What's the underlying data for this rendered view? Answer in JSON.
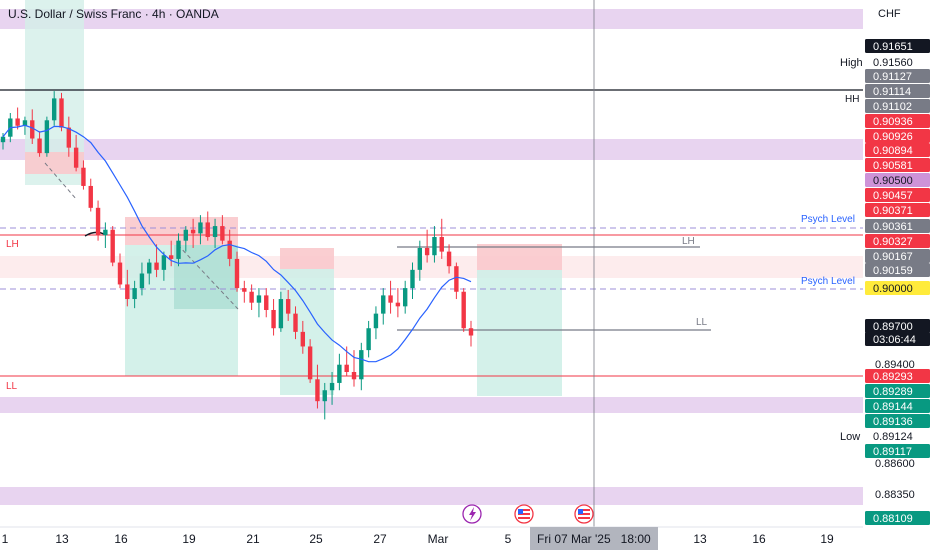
{
  "header": {
    "title": "U.S. Dollar / Swiss Franc · 4h · OANDA",
    "currency": "CHF"
  },
  "colors": {
    "up": "#089981",
    "down": "#f23645",
    "ma": "#2962ff",
    "zone": "#e1bee7",
    "psych": "#9c8fd9",
    "line_red": "#f23645"
  },
  "price_axis": {
    "plain_ticks": [
      "0.89400",
      "0.88600",
      "0.88350"
    ]
  },
  "price_badges": [
    {
      "text": "0.91651",
      "kind": "black"
    },
    {
      "text": "0.91560",
      "kind": "plain",
      "side_label": "High"
    },
    {
      "text": "0.91127",
      "kind": "gray"
    },
    {
      "text": "0.91114",
      "kind": "gray"
    },
    {
      "text": "0.91102",
      "kind": "gray"
    },
    {
      "text": "0.90936",
      "kind": "red"
    },
    {
      "text": "0.90926",
      "kind": "red"
    },
    {
      "text": "0.90894",
      "kind": "red"
    },
    {
      "text": "0.90581",
      "kind": "red"
    },
    {
      "text": "0.90500",
      "kind": "purple"
    },
    {
      "text": "0.90457",
      "kind": "red"
    },
    {
      "text": "0.90371",
      "kind": "red"
    },
    {
      "text": "0.90361",
      "kind": "gray"
    },
    {
      "text": "0.90327",
      "kind": "red"
    },
    {
      "text": "0.90167",
      "kind": "gray"
    },
    {
      "text": "0.90159",
      "kind": "gray"
    },
    {
      "text": "0.90000",
      "kind": "yellow"
    },
    {
      "text": "0.89700",
      "kind": "black"
    },
    {
      "text": "03:06:44",
      "kind": "black"
    },
    {
      "text": "0.89293",
      "kind": "red"
    },
    {
      "text": "0.89289",
      "kind": "green"
    },
    {
      "text": "0.89144",
      "kind": "green"
    },
    {
      "text": "0.89136",
      "kind": "green"
    },
    {
      "text": "0.89124",
      "kind": "plain",
      "side_label": "Low"
    },
    {
      "text": "0.89117",
      "kind": "green"
    },
    {
      "text": "0.88109",
      "kind": "green"
    }
  ],
  "drawing_labels": {
    "hh": "HH",
    "lh_left": "LH",
    "lh_right": "LH",
    "ll_left": "LL",
    "ll_right": "LL",
    "psych_upper": "Psych Level",
    "psych_lower": "Psych Level"
  },
  "time_axis": {
    "labels": [
      "1",
      "13",
      "16",
      "19",
      "21",
      "25",
      "27",
      "Mar",
      "5",
      "13",
      "16",
      "19"
    ],
    "crosshair_label": "Fri 07 Mar '25   18:00"
  },
  "event_icons": [
    "lightning-icon",
    "us-flag-icon",
    "us-flag-icon"
  ],
  "candles": [
    [
      0.9076,
      0.9081,
      0.9072,
      0.9079
    ],
    [
      0.9079,
      0.9092,
      0.9076,
      0.9089
    ],
    [
      0.9089,
      0.9095,
      0.9083,
      0.9085
    ],
    [
      0.9085,
      0.909,
      0.908,
      0.9088
    ],
    [
      0.9088,
      0.9094,
      0.9075,
      0.9078
    ],
    [
      0.9078,
      0.9082,
      0.9068,
      0.907
    ],
    [
      0.907,
      0.909,
      0.9068,
      0.9088
    ],
    [
      0.9088,
      0.9104,
      0.9085,
      0.91
    ],
    [
      0.91,
      0.9103,
      0.9082,
      0.9084
    ],
    [
      0.9084,
      0.909,
      0.9068,
      0.9073
    ],
    [
      0.9073,
      0.908,
      0.906,
      0.9062
    ],
    [
      0.9062,
      0.9066,
      0.905,
      0.9052
    ],
    [
      0.9052,
      0.9056,
      0.9038,
      0.904
    ],
    [
      0.904,
      0.9044,
      0.9022,
      0.9025
    ],
    [
      0.9025,
      0.9032,
      0.9018,
      0.9028
    ],
    [
      0.9028,
      0.903,
      0.9008,
      0.901
    ],
    [
      0.901,
      0.9015,
      0.8996,
      0.8998
    ],
    [
      0.8998,
      0.9006,
      0.8986,
      0.899
    ],
    [
      0.899,
      0.9,
      0.8985,
      0.8996
    ],
    [
      0.8996,
      0.901,
      0.8992,
      0.9004
    ],
    [
      0.9004,
      0.9012,
      0.8998,
      0.901
    ],
    [
      0.901,
      0.902,
      0.9002,
      0.9006
    ],
    [
      0.9006,
      0.9016,
      0.9,
      0.9014
    ],
    [
      0.9014,
      0.9022,
      0.9008,
      0.9012
    ],
    [
      0.9012,
      0.9026,
      0.9008,
      0.9022
    ],
    [
      0.9022,
      0.903,
      0.9016,
      0.9028
    ],
    [
      0.9028,
      0.9034,
      0.9018,
      0.9026
    ],
    [
      0.9026,
      0.9036,
      0.902,
      0.9032
    ],
    [
      0.9032,
      0.9038,
      0.9022,
      0.9024
    ],
    [
      0.9024,
      0.9034,
      0.9018,
      0.903
    ],
    [
      0.903,
      0.9036,
      0.902,
      0.9022
    ],
    [
      0.9022,
      0.9028,
      0.9008,
      0.9012
    ],
    [
      0.9012,
      0.9016,
      0.8994,
      0.8996
    ],
    [
      0.8996,
      0.9,
      0.8988,
      0.8994
    ],
    [
      0.8994,
      0.8998,
      0.8984,
      0.8988
    ],
    [
      0.8988,
      0.8996,
      0.898,
      0.8992
    ],
    [
      0.8992,
      0.8996,
      0.898,
      0.8984
    ],
    [
      0.8984,
      0.899,
      0.897,
      0.8974
    ],
    [
      0.8974,
      0.8994,
      0.8972,
      0.899
    ],
    [
      0.899,
      0.8995,
      0.8978,
      0.8982
    ],
    [
      0.8982,
      0.8986,
      0.8968,
      0.8972
    ],
    [
      0.8972,
      0.8978,
      0.896,
      0.8964
    ],
    [
      0.8964,
      0.8968,
      0.8944,
      0.8946
    ],
    [
      0.8946,
      0.8954,
      0.893,
      0.8934
    ],
    [
      0.8934,
      0.8944,
      0.8924,
      0.894
    ],
    [
      0.894,
      0.895,
      0.8932,
      0.8944
    ],
    [
      0.8944,
      0.896,
      0.894,
      0.8954
    ],
    [
      0.8954,
      0.8964,
      0.8948,
      0.895
    ],
    [
      0.895,
      0.8962,
      0.8942,
      0.8946
    ],
    [
      0.8946,
      0.8966,
      0.894,
      0.8962
    ],
    [
      0.8962,
      0.8978,
      0.8958,
      0.8974
    ],
    [
      0.8974,
      0.8986,
      0.8968,
      0.8982
    ],
    [
      0.8982,
      0.8996,
      0.8976,
      0.8992
    ],
    [
      0.8992,
      0.9,
      0.8982,
      0.8988
    ],
    [
      0.8988,
      0.8996,
      0.898,
      0.8986
    ],
    [
      0.8986,
      0.9,
      0.8982,
      0.8996
    ],
    [
      0.8996,
      0.901,
      0.899,
      0.9006
    ],
    [
      0.9006,
      0.9022,
      0.9,
      0.9018
    ],
    [
      0.9018,
      0.9028,
      0.901,
      0.9014
    ],
    [
      0.9014,
      0.903,
      0.901,
      0.9024
    ],
    [
      0.9024,
      0.9034,
      0.9012,
      0.9016
    ],
    [
      0.9016,
      0.902,
      0.9004,
      0.9008
    ],
    [
      0.9008,
      0.901,
      0.899,
      0.8994
    ],
    [
      0.8994,
      0.8996,
      0.8972,
      0.8974
    ],
    [
      0.8974,
      0.8978,
      0.8964,
      0.897
    ]
  ]
}
